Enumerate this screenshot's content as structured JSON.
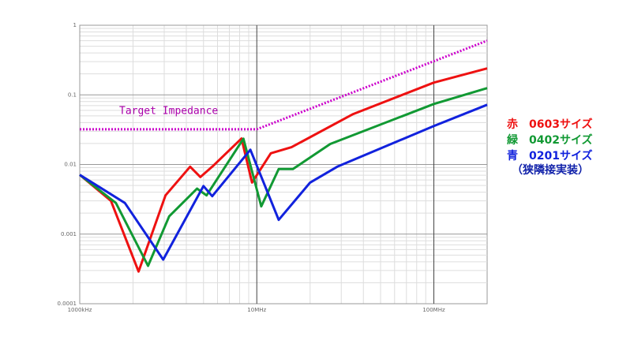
{
  "chart_data": {
    "type": "line",
    "xlog": true,
    "ylog": true,
    "grid": true,
    "minor_grid": true,
    "xlim": [
      1000000,
      200000000
    ],
    "ylim": [
      0.0001,
      1
    ],
    "xticks": [
      {
        "value": 1000000,
        "label": "1000kHz"
      },
      {
        "value": 10000000,
        "label": "10MHz"
      },
      {
        "value": 100000000,
        "label": "100MHz"
      }
    ],
    "yticks": [
      1,
      0.1,
      0.01,
      0.001,
      0.0001
    ],
    "target": {
      "name": "Target Impedance",
      "color": "#cc00cc",
      "dash": "dotted",
      "x": [
        1000000,
        10000000,
        200000000
      ],
      "values": [
        0.032,
        0.032,
        0.6
      ]
    },
    "series": [
      {
        "name": "赤　0603サイズ",
        "color": "#ee1111",
        "x": [
          1000000,
          1500000,
          2150000,
          3050000,
          4200000,
          4800000,
          5700000,
          8200000,
          9400000,
          12000000,
          15700000,
          35000000,
          100000000,
          200000000
        ],
        "values": [
          0.0071,
          0.003,
          0.00029,
          0.0036,
          0.0093,
          0.0066,
          0.0097,
          0.0236,
          0.0055,
          0.0145,
          0.0177,
          0.053,
          0.15,
          0.24
        ]
      },
      {
        "name": "緑　0402サイズ",
        "color": "#119933",
        "x": [
          1000000,
          1600000,
          2430000,
          3200000,
          4600000,
          5200000,
          8400000,
          10600000,
          13300000,
          16000000,
          26000000,
          100000000,
          200000000
        ],
        "values": [
          0.0071,
          0.0028,
          0.00035,
          0.0018,
          0.0045,
          0.0036,
          0.0235,
          0.0025,
          0.0086,
          0.0086,
          0.0197,
          0.074,
          0.125
        ]
      },
      {
        "name": "青　0201サイズ",
        "color": "#1122dd",
        "x": [
          1000000,
          1800000,
          2960000,
          5000000,
          5600000,
          9200000,
          13300000,
          20000000,
          28500000,
          100000000,
          200000000
        ],
        "values": [
          0.0071,
          0.0028,
          0.00043,
          0.0049,
          0.0035,
          0.0163,
          0.0016,
          0.0055,
          0.0093,
          0.0357,
          0.072
        ]
      }
    ],
    "legend_note": "（狭隣接実装）"
  }
}
